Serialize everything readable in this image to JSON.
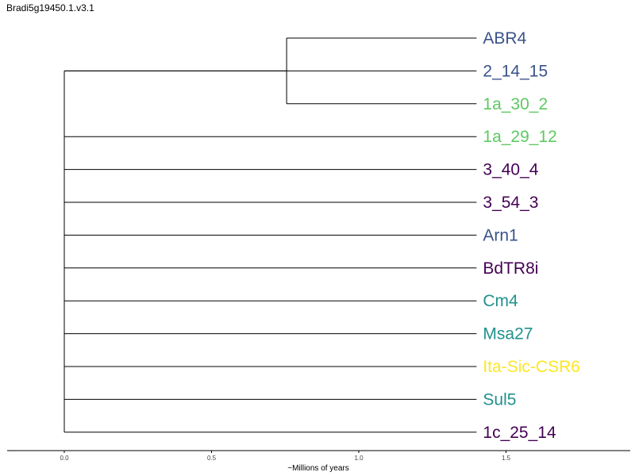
{
  "chart_data": {
    "type": "dendrogram",
    "title": "Bradi5g19450.1.v3.1",
    "xlabel": "~Millions of years",
    "xlim": [
      0,
      1.85
    ],
    "xticks": [
      {
        "value": 0.0,
        "label": "0.0"
      },
      {
        "value": 0.5,
        "label": "0.5"
      },
      {
        "value": 1.0,
        "label": "1.0"
      },
      {
        "value": 1.5,
        "label": "1.5"
      }
    ],
    "tip_x": 1.4,
    "root_x": 0.0,
    "clade_node_x": 0.755,
    "leaves": [
      {
        "name": "ABR4",
        "color": "#3b528b",
        "parent": "clade"
      },
      {
        "name": "2_14_15",
        "color": "#3b528b",
        "parent": "root"
      },
      {
        "name": "1a_30_2",
        "color": "#5ec962",
        "parent": "clade"
      },
      {
        "name": "1a_29_12",
        "color": "#5ec962",
        "parent": "root"
      },
      {
        "name": "3_40_4",
        "color": "#440154",
        "parent": "root"
      },
      {
        "name": "3_54_3",
        "color": "#440154",
        "parent": "root"
      },
      {
        "name": "Arn1",
        "color": "#3b528b",
        "parent": "root"
      },
      {
        "name": "BdTR8i",
        "color": "#440154",
        "parent": "root"
      },
      {
        "name": "Cm4",
        "color": "#21918c",
        "parent": "root"
      },
      {
        "name": "Msa27",
        "color": "#21918c",
        "parent": "root"
      },
      {
        "name": "Ita-Sic-CSR6",
        "color": "#fde725",
        "parent": "root"
      },
      {
        "name": "Sul5",
        "color": "#21918c",
        "parent": "root"
      },
      {
        "name": "1c_25_14",
        "color": "#440154",
        "parent": "root"
      }
    ]
  }
}
